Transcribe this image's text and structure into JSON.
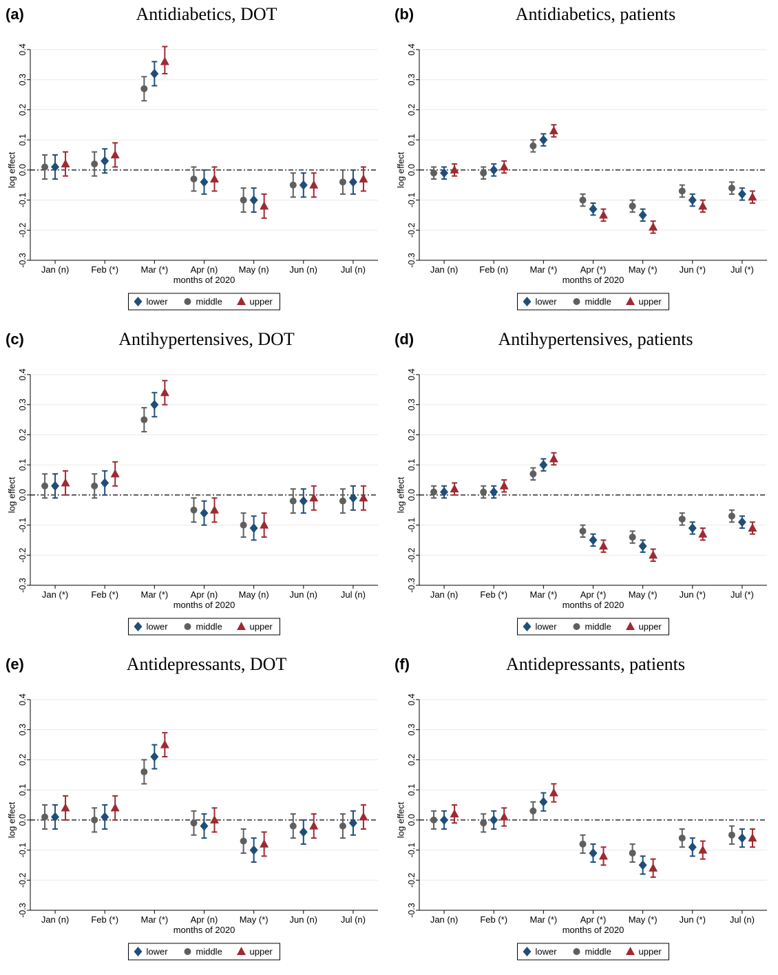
{
  "chart_data": [
    {
      "panel": "(a)",
      "title": "Antidiabetics, DOT",
      "type": "scatter",
      "xlabel": "months of 2020",
      "ylabel": "log effect",
      "categories": [
        "Jan (n)",
        "Feb (*)",
        "Mar (*)",
        "Apr (n)",
        "May (n)",
        "Jun (n)",
        "Jul (n)"
      ],
      "ylim": [
        -0.3,
        0.4
      ],
      "yticks": [
        "-0.3",
        "-0.2",
        "-0.1",
        "0.0",
        "0.1",
        "0.2",
        "0.3",
        "0.4"
      ],
      "series": [
        {
          "name": "middle",
          "values": [
            0.01,
            0.02,
            0.27,
            -0.03,
            -0.1,
            -0.05,
            -0.04
          ],
          "ci_low": [
            -0.03,
            -0.02,
            0.23,
            -0.07,
            -0.14,
            -0.09,
            -0.08
          ],
          "ci_high": [
            0.05,
            0.06,
            0.31,
            0.01,
            -0.06,
            -0.01,
            0.0
          ]
        },
        {
          "name": "lower",
          "values": [
            0.01,
            0.03,
            0.32,
            -0.04,
            -0.1,
            -0.05,
            -0.04
          ],
          "ci_low": [
            -0.03,
            -0.01,
            0.28,
            -0.08,
            -0.14,
            -0.09,
            -0.08
          ],
          "ci_high": [
            0.05,
            0.07,
            0.36,
            0.0,
            -0.06,
            -0.01,
            0.0
          ]
        },
        {
          "name": "upper",
          "values": [
            0.02,
            0.05,
            0.36,
            -0.03,
            -0.12,
            -0.05,
            -0.03
          ],
          "ci_low": [
            -0.02,
            0.01,
            0.32,
            -0.07,
            -0.16,
            -0.09,
            -0.07
          ],
          "ci_high": [
            0.06,
            0.09,
            0.41,
            0.01,
            -0.08,
            -0.01,
            0.01
          ]
        }
      ]
    },
    {
      "panel": "(b)",
      "title": "Antidiabetics, patients",
      "type": "scatter",
      "xlabel": "months of 2020",
      "ylabel": "log effect",
      "categories": [
        "Jan (n)",
        "Feb (n)",
        "Mar (*)",
        "Apr (*)",
        "May (*)",
        "Jun (*)",
        "Jul (*)"
      ],
      "ylim": [
        -0.3,
        0.4
      ],
      "yticks": [
        "-0.3",
        "-0.2",
        "-0.1",
        "0.0",
        "0.1",
        "0.2",
        "0.3",
        "0.4"
      ],
      "series": [
        {
          "name": "middle",
          "values": [
            -0.01,
            -0.01,
            0.08,
            -0.1,
            -0.12,
            -0.07,
            -0.06
          ],
          "ci_low": [
            -0.03,
            -0.03,
            0.06,
            -0.12,
            -0.14,
            -0.09,
            -0.08
          ],
          "ci_high": [
            0.01,
            0.01,
            0.1,
            -0.08,
            -0.1,
            -0.05,
            -0.04
          ]
        },
        {
          "name": "lower",
          "values": [
            -0.01,
            0.0,
            0.1,
            -0.13,
            -0.15,
            -0.1,
            -0.08
          ],
          "ci_low": [
            -0.03,
            -0.02,
            0.08,
            -0.15,
            -0.17,
            -0.12,
            -0.1
          ],
          "ci_high": [
            0.01,
            0.02,
            0.12,
            -0.11,
            -0.13,
            -0.08,
            -0.06
          ]
        },
        {
          "name": "upper",
          "values": [
            0.0,
            0.01,
            0.13,
            -0.15,
            -0.19,
            -0.12,
            -0.09
          ],
          "ci_low": [
            -0.02,
            -0.01,
            0.11,
            -0.17,
            -0.21,
            -0.14,
            -0.11
          ],
          "ci_high": [
            0.02,
            0.03,
            0.15,
            -0.13,
            -0.17,
            -0.1,
            -0.07
          ]
        }
      ]
    },
    {
      "panel": "(c)",
      "title": "Antihypertensives, DOT",
      "type": "scatter",
      "xlabel": "months of 2020",
      "ylabel": "log effect",
      "categories": [
        "Jan (*)",
        "Feb (*)",
        "Mar (*)",
        "Apr (n)",
        "May (n)",
        "Jun (n)",
        "Jul (n)"
      ],
      "ylim": [
        -0.3,
        0.4
      ],
      "yticks": [
        "-0.3",
        "-0.2",
        "-0.1",
        "0.0",
        "0.1",
        "0.2",
        "0.3",
        "0.4"
      ],
      "series": [
        {
          "name": "middle",
          "values": [
            0.03,
            0.03,
            0.25,
            -0.05,
            -0.1,
            -0.02,
            -0.02
          ],
          "ci_low": [
            -0.01,
            -0.01,
            0.21,
            -0.09,
            -0.14,
            -0.06,
            -0.06
          ],
          "ci_high": [
            0.07,
            0.07,
            0.29,
            -0.01,
            -0.06,
            0.02,
            0.02
          ]
        },
        {
          "name": "lower",
          "values": [
            0.03,
            0.04,
            0.3,
            -0.06,
            -0.11,
            -0.02,
            -0.01
          ],
          "ci_low": [
            -0.01,
            0.0,
            0.26,
            -0.1,
            -0.15,
            -0.06,
            -0.05
          ],
          "ci_high": [
            0.07,
            0.08,
            0.34,
            -0.02,
            -0.07,
            0.02,
            0.03
          ]
        },
        {
          "name": "upper",
          "values": [
            0.04,
            0.07,
            0.34,
            -0.05,
            -0.1,
            -0.01,
            -0.01
          ],
          "ci_low": [
            0.0,
            0.03,
            0.3,
            -0.09,
            -0.14,
            -0.05,
            -0.05
          ],
          "ci_high": [
            0.08,
            0.11,
            0.38,
            -0.01,
            -0.06,
            0.03,
            0.03
          ]
        }
      ]
    },
    {
      "panel": "(d)",
      "title": "Antihypertensives, patients",
      "type": "scatter",
      "xlabel": "months of 2020",
      "ylabel": "log effect",
      "categories": [
        "Jan (n)",
        "Feb (*)",
        "Mar (*)",
        "Apr (*)",
        "May (*)",
        "Jun (*)",
        "Jul (*)"
      ],
      "ylim": [
        -0.3,
        0.4
      ],
      "yticks": [
        "-0.3",
        "-0.2",
        "-0.1",
        "0.0",
        "0.1",
        "0.2",
        "0.3",
        "0.4"
      ],
      "series": [
        {
          "name": "middle",
          "values": [
            0.01,
            0.01,
            0.07,
            -0.12,
            -0.14,
            -0.08,
            -0.07
          ],
          "ci_low": [
            -0.01,
            -0.01,
            0.05,
            -0.14,
            -0.16,
            -0.1,
            -0.09
          ],
          "ci_high": [
            0.03,
            0.03,
            0.09,
            -0.1,
            -0.12,
            -0.06,
            -0.05
          ]
        },
        {
          "name": "lower",
          "values": [
            0.01,
            0.01,
            0.1,
            -0.15,
            -0.17,
            -0.11,
            -0.09
          ],
          "ci_low": [
            -0.01,
            -0.01,
            0.08,
            -0.17,
            -0.19,
            -0.13,
            -0.11
          ],
          "ci_high": [
            0.03,
            0.03,
            0.12,
            -0.13,
            -0.15,
            -0.09,
            -0.07
          ]
        },
        {
          "name": "upper",
          "values": [
            0.02,
            0.03,
            0.12,
            -0.17,
            -0.2,
            -0.13,
            -0.11
          ],
          "ci_low": [
            0.0,
            0.01,
            0.1,
            -0.19,
            -0.22,
            -0.15,
            -0.13
          ],
          "ci_high": [
            0.04,
            0.05,
            0.14,
            -0.15,
            -0.18,
            -0.11,
            -0.09
          ]
        }
      ]
    },
    {
      "panel": "(e)",
      "title": "Antidepressants, DOT",
      "type": "scatter",
      "xlabel": "months of 2020",
      "ylabel": "log effect",
      "categories": [
        "Jan (n)",
        "Feb (*)",
        "Mar (*)",
        "Apr (n)",
        "May (*)",
        "Jun (n)",
        "Jul (n)"
      ],
      "ylim": [
        -0.3,
        0.4
      ],
      "yticks": [
        "-0.3",
        "-0.2",
        "-0.1",
        "0.0",
        "0.1",
        "0.2",
        "0.3",
        "0.4"
      ],
      "series": [
        {
          "name": "middle",
          "values": [
            0.01,
            0.0,
            0.16,
            -0.01,
            -0.07,
            -0.02,
            -0.02
          ],
          "ci_low": [
            -0.03,
            -0.04,
            0.12,
            -0.05,
            -0.11,
            -0.06,
            -0.06
          ],
          "ci_high": [
            0.05,
            0.04,
            0.2,
            0.03,
            -0.03,
            0.02,
            0.02
          ]
        },
        {
          "name": "lower",
          "values": [
            0.01,
            0.01,
            0.21,
            -0.02,
            -0.1,
            -0.04,
            -0.01
          ],
          "ci_low": [
            -0.03,
            -0.03,
            0.17,
            -0.06,
            -0.14,
            -0.08,
            -0.05
          ],
          "ci_high": [
            0.05,
            0.05,
            0.25,
            0.02,
            -0.06,
            0.0,
            0.03
          ]
        },
        {
          "name": "upper",
          "values": [
            0.04,
            0.04,
            0.25,
            0.0,
            -0.08,
            -0.02,
            0.01
          ],
          "ci_low": [
            0.0,
            0.0,
            0.21,
            -0.04,
            -0.12,
            -0.06,
            -0.03
          ],
          "ci_high": [
            0.08,
            0.08,
            0.29,
            0.04,
            -0.04,
            0.02,
            0.05
          ]
        }
      ]
    },
    {
      "panel": "(f)",
      "title": "Antidepressants, patients",
      "type": "scatter",
      "xlabel": "months of 2020",
      "ylabel": "log effect",
      "categories": [
        "Jan (n)",
        "Feb (*)",
        "Mar (*)",
        "Apr (*)",
        "May (*)",
        "Jun (*)",
        "Jul (n)"
      ],
      "ylim": [
        -0.3,
        0.4
      ],
      "yticks": [
        "-0.3",
        "-0.2",
        "-0.1",
        "0.0",
        "0.1",
        "0.2",
        "0.3",
        "0.4"
      ],
      "series": [
        {
          "name": "middle",
          "values": [
            0.0,
            -0.01,
            0.03,
            -0.08,
            -0.11,
            -0.06,
            -0.05
          ],
          "ci_low": [
            -0.03,
            -0.04,
            0.0,
            -0.11,
            -0.14,
            -0.09,
            -0.08
          ],
          "ci_high": [
            0.03,
            0.02,
            0.06,
            -0.05,
            -0.08,
            -0.03,
            -0.02
          ]
        },
        {
          "name": "lower",
          "values": [
            0.0,
            0.0,
            0.06,
            -0.11,
            -0.15,
            -0.09,
            -0.06
          ],
          "ci_low": [
            -0.03,
            -0.03,
            0.03,
            -0.14,
            -0.18,
            -0.12,
            -0.09
          ],
          "ci_high": [
            0.03,
            0.03,
            0.09,
            -0.08,
            -0.12,
            -0.06,
            -0.03
          ]
        },
        {
          "name": "upper",
          "values": [
            0.02,
            0.01,
            0.09,
            -0.12,
            -0.16,
            -0.1,
            -0.06
          ],
          "ci_low": [
            -0.01,
            -0.02,
            0.06,
            -0.15,
            -0.19,
            -0.13,
            -0.09
          ],
          "ci_high": [
            0.05,
            0.04,
            0.12,
            -0.09,
            -0.13,
            -0.07,
            -0.03
          ]
        }
      ]
    }
  ],
  "legend": {
    "order": [
      "lower",
      "middle",
      "upper"
    ]
  },
  "colors": {
    "lower": "#1f4e79",
    "middle": "#5f5f5f",
    "upper": "#9e2a32",
    "grid": "#eaeaea",
    "zero_line": "#000000"
  },
  "markers": {
    "lower": "diamond",
    "middle": "circle",
    "upper": "triangle"
  }
}
